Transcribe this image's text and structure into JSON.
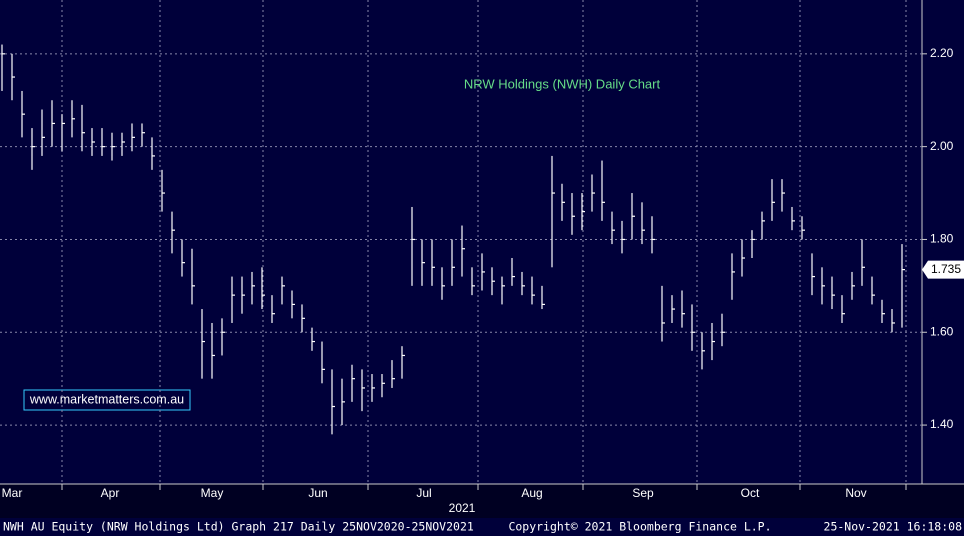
{
  "chart_data": {
    "type": "ohlc",
    "title": "NRW Holdings (NWH) Daily Chart",
    "watermark": "www.marketmatters.com.au",
    "year_label": "2021",
    "footer": {
      "left": "NWH AU Equity (NRW Holdings Ltd) Graph 217  Daily 25NOV2020-25NOV2021",
      "center": "Copyright© 2021 Bloomberg Finance L.P.",
      "right": "25-Nov-2021 16:18:08"
    },
    "high": [
      2.22,
      2.2,
      2.12,
      2.04,
      2.08,
      2.1,
      2.07,
      2.1,
      2.09,
      2.04,
      2.04,
      2.03,
      2.03,
      2.05,
      2.05,
      2.02,
      1.95,
      1.86,
      1.8,
      1.78,
      1.65,
      1.62,
      1.63,
      1.72,
      1.72,
      1.73,
      1.74,
      1.68,
      1.72,
      1.69,
      1.66,
      1.61,
      1.58,
      1.52,
      1.5,
      1.53,
      1.52,
      1.51,
      1.51,
      1.54,
      1.57,
      1.87,
      1.8,
      1.8,
      1.74,
      1.8,
      1.83,
      1.74,
      1.77,
      1.74,
      1.72,
      1.76,
      1.73,
      1.72,
      1.7,
      1.98,
      1.92,
      1.9,
      1.9,
      1.94,
      1.97,
      1.86,
      1.84,
      1.9,
      1.88,
      1.85,
      1.7,
      1.68,
      1.69,
      1.66,
      1.6,
      1.62,
      1.64,
      1.77,
      1.8,
      1.82,
      1.86,
      1.93,
      1.93,
      1.87,
      1.85,
      1.77,
      1.74,
      1.72,
      1.68,
      1.73,
      1.8,
      1.72,
      1.67,
      1.65,
      1.79
    ],
    "low": [
      2.12,
      2.1,
      2.02,
      1.95,
      1.98,
      2.0,
      1.99,
      2.02,
      1.99,
      1.98,
      1.98,
      1.97,
      1.98,
      1.99,
      2.0,
      1.95,
      1.86,
      1.77,
      1.72,
      1.66,
      1.5,
      1.5,
      1.55,
      1.62,
      1.64,
      1.66,
      1.65,
      1.62,
      1.66,
      1.63,
      1.6,
      1.56,
      1.49,
      1.38,
      1.4,
      1.45,
      1.43,
      1.45,
      1.46,
      1.48,
      1.5,
      1.7,
      1.7,
      1.7,
      1.67,
      1.7,
      1.72,
      1.68,
      1.69,
      1.68,
      1.66,
      1.7,
      1.68,
      1.66,
      1.65,
      1.74,
      1.84,
      1.81,
      1.82,
      1.86,
      1.84,
      1.79,
      1.77,
      1.8,
      1.79,
      1.77,
      1.58,
      1.62,
      1.61,
      1.56,
      1.52,
      1.54,
      1.57,
      1.67,
      1.72,
      1.76,
      1.8,
      1.84,
      1.86,
      1.82,
      1.8,
      1.68,
      1.66,
      1.65,
      1.62,
      1.67,
      1.7,
      1.66,
      1.62,
      1.6,
      1.61
    ],
    "close": [
      2.2,
      2.15,
      2.07,
      2.0,
      2.02,
      2.05,
      2.05,
      2.06,
      2.03,
      2.01,
      2.0,
      2.0,
      2.01,
      2.02,
      2.03,
      1.98,
      1.9,
      1.82,
      1.75,
      1.7,
      1.58,
      1.55,
      1.6,
      1.68,
      1.68,
      1.7,
      1.68,
      1.64,
      1.7,
      1.66,
      1.63,
      1.58,
      1.52,
      1.44,
      1.45,
      1.5,
      1.48,
      1.48,
      1.49,
      1.5,
      1.55,
      1.8,
      1.75,
      1.74,
      1.7,
      1.74,
      1.78,
      1.7,
      1.73,
      1.71,
      1.7,
      1.72,
      1.7,
      1.68,
      1.66,
      1.9,
      1.88,
      1.85,
      1.86,
      1.9,
      1.88,
      1.82,
      1.8,
      1.85,
      1.82,
      1.8,
      1.62,
      1.65,
      1.64,
      1.6,
      1.56,
      1.58,
      1.6,
      1.73,
      1.76,
      1.8,
      1.84,
      1.88,
      1.9,
      1.84,
      1.82,
      1.72,
      1.7,
      1.68,
      1.64,
      1.7,
      1.74,
      1.68,
      1.64,
      1.62,
      1.735
    ],
    "last_value": 1.735,
    "color": "#ffffff",
    "xlim": [
      -0.2,
      92
    ],
    "xticks": [
      {
        "value": 1,
        "label": "Mar"
      },
      {
        "value": 10.8,
        "label": "Apr"
      },
      {
        "value": 21,
        "label": "May"
      },
      {
        "value": 31.6,
        "label": "Jun"
      },
      {
        "value": 42.2,
        "label": "Jul"
      },
      {
        "value": 53,
        "label": "Aug"
      },
      {
        "value": 64.1,
        "label": "Sep"
      },
      {
        "value": 74.8,
        "label": "Oct"
      },
      {
        "value": 85.4,
        "label": "Nov"
      }
    ],
    "xgrid": [
      6,
      15.8,
      26.1,
      36.6,
      47.6,
      58.1,
      69.5,
      79.8,
      90.4
    ],
    "ylim": [
      1.273,
      2.316
    ],
    "yticks": [
      {
        "value": 1.4,
        "label": "1.40"
      },
      {
        "value": 1.6,
        "label": "1.60"
      },
      {
        "value": 1.8,
        "label": "1.80"
      },
      {
        "value": 2.0,
        "label": "2.00"
      },
      {
        "value": 2.2,
        "label": "2.20"
      }
    ],
    "grid": true
  }
}
